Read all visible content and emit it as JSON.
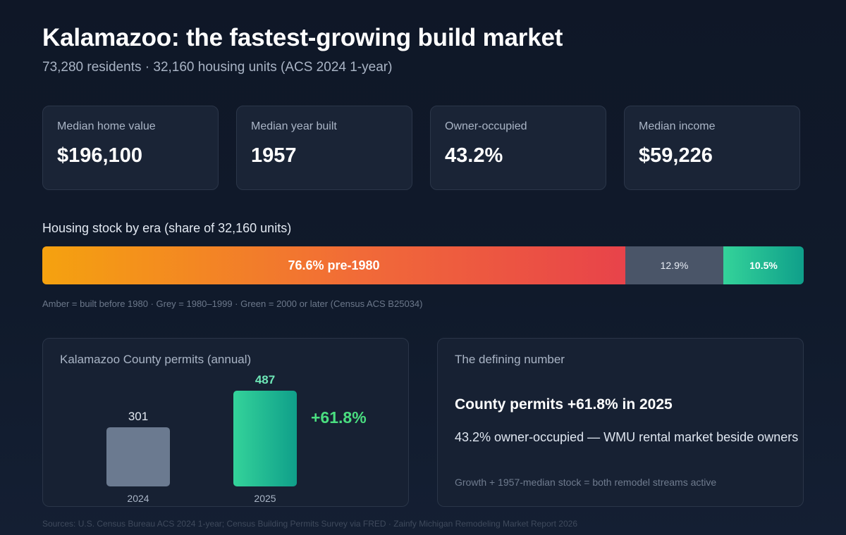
{
  "header": {
    "title": "Kalamazoo: the fastest-growing build market",
    "subtitle": "73,280 residents · 32,160 housing units (ACS 2024 1-year)"
  },
  "stats": [
    {
      "label": "Median home value",
      "value": "$196,100"
    },
    {
      "label": "Median year built",
      "value": "1957"
    },
    {
      "label": "Owner-occupied",
      "value": "43.2%"
    },
    {
      "label": "Median income",
      "value": "$59,226"
    }
  ],
  "era": {
    "title": "Housing stock by era (share of 32,160 units)",
    "segments": [
      {
        "label": "76.6% pre-1980",
        "share": 76.6
      },
      {
        "label": "12.9%",
        "share": 12.9
      },
      {
        "label": "10.5%",
        "share": 10.5
      }
    ],
    "caption": "Amber = built before 1980 · Grey = 1980–1999 · Green = 2000 or later (Census ACS B25034)",
    "colors": {
      "pre": "#f5a20f",
      "mid": "#4a5568",
      "new": "#34d39a"
    }
  },
  "permits_panel": {
    "title": "Kalamazoo County permits (annual)",
    "change_label": "+61.8%"
  },
  "chart_data": {
    "type": "bar",
    "title": "Kalamazoo County permits (annual)",
    "categories": [
      "2024",
      "2025"
    ],
    "values": [
      301,
      487
    ],
    "value_labels": [
      "301",
      "487"
    ],
    "ylim": [
      0,
      487
    ],
    "grid": false,
    "annotation": "+61.8%",
    "colors": [
      "#6b7a90",
      "#2ec99a"
    ]
  },
  "defining": {
    "title": "The defining number",
    "headline": "County permits +61.8% in 2025",
    "body": "43.2% owner-occupied — WMU rental market beside owners",
    "note": "Growth + 1957-median stock = both remodel streams active"
  },
  "footer": {
    "sources": "Sources: U.S. Census Bureau ACS 2024 1-year; Census Building Permits Survey via FRED · Zainfy Michigan Remodeling Market Report 2026"
  }
}
